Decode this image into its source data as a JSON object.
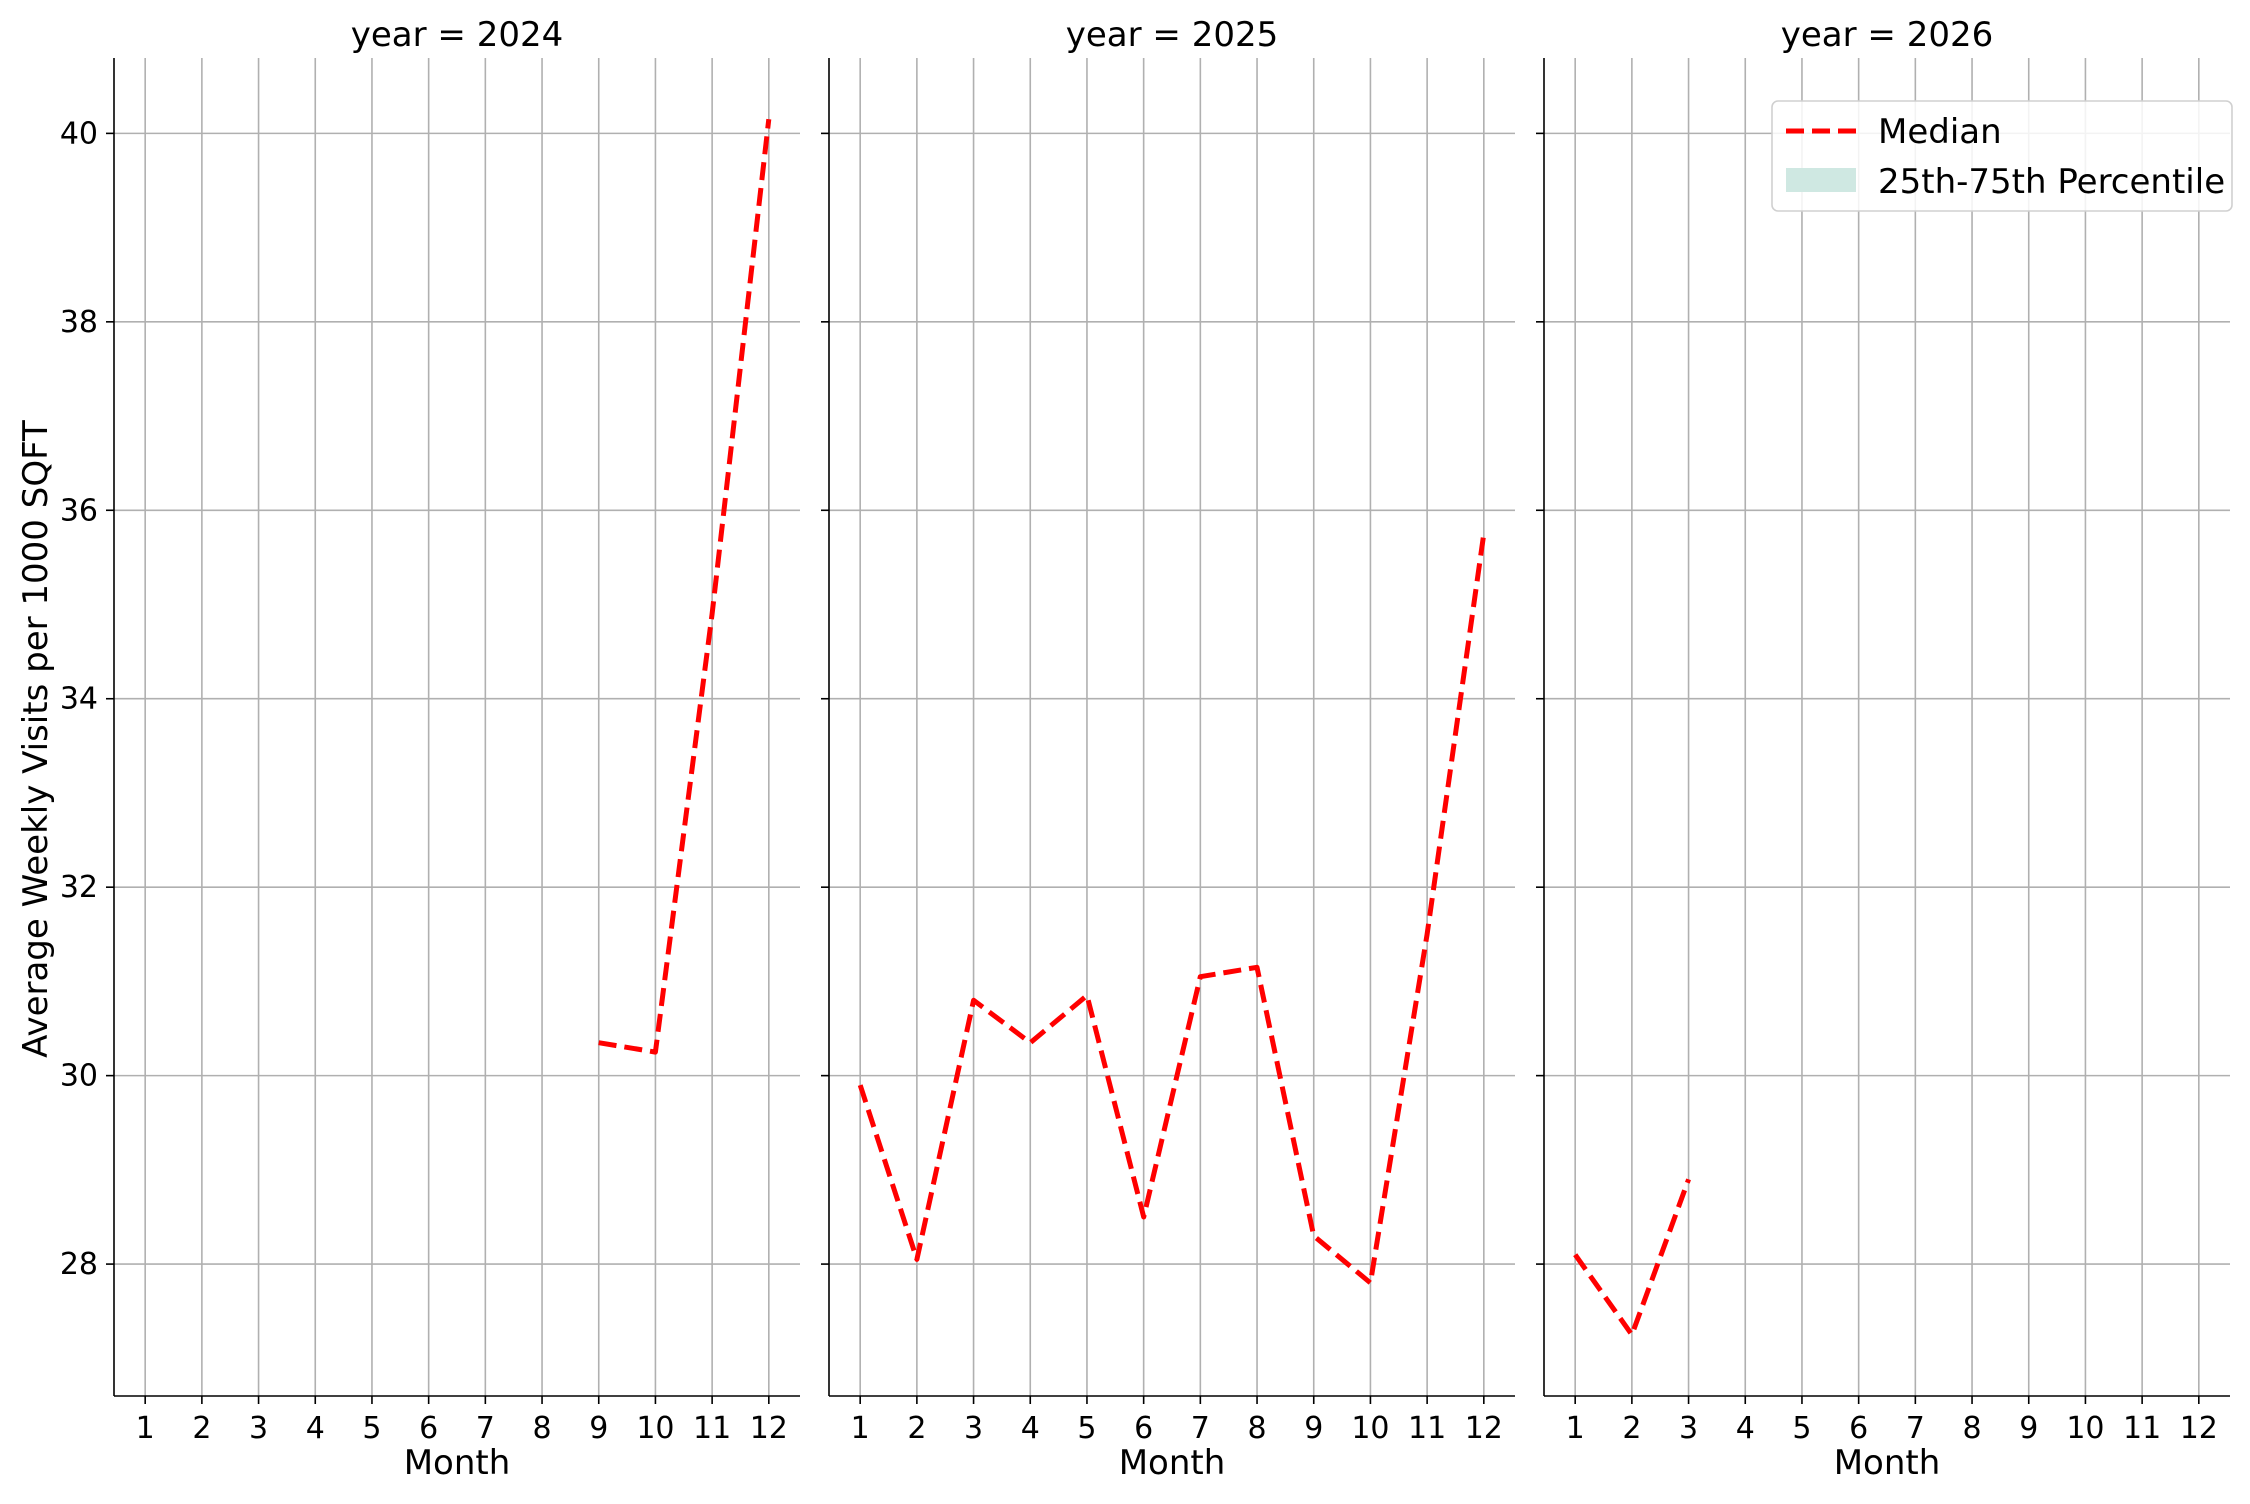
{
  "chart_data": {
    "type": "line",
    "ylabel": "Average Weekly Visits per 1000 SQFT",
    "xlabel": "Month",
    "xticks": [
      1,
      2,
      3,
      4,
      5,
      6,
      7,
      8,
      9,
      10,
      11,
      12
    ],
    "yticks": [
      28,
      30,
      32,
      34,
      36,
      38,
      40
    ],
    "ylim": [
      26.6,
      40.8
    ],
    "xlim": [
      0.45,
      12.55
    ],
    "grid": true,
    "shared_y": true,
    "legend": {
      "placement": "top-right of last panel",
      "entries": [
        {
          "label": "Median",
          "style": "dashed-line",
          "color": "#ff0000"
        },
        {
          "label": "25th-75th Percentile",
          "style": "band",
          "color": "#cfe8e2"
        }
      ]
    },
    "panels": [
      {
        "title": "year = 2024",
        "series": [
          {
            "name": "Median",
            "x": [
              9,
              10,
              11,
              12
            ],
            "y": [
              30.35,
              30.25,
              34.9,
              40.15
            ]
          }
        ]
      },
      {
        "title": "year = 2025",
        "series": [
          {
            "name": "Median",
            "x": [
              1,
              2,
              3,
              4,
              5,
              6,
              7,
              8,
              9,
              10,
              11,
              12
            ],
            "y": [
              29.9,
              28.05,
              30.8,
              30.35,
              30.85,
              28.5,
              31.05,
              31.15,
              28.3,
              27.8,
              31.5,
              35.75
            ]
          }
        ]
      },
      {
        "title": "year = 2026",
        "series": [
          {
            "name": "Median",
            "x": [
              1,
              2,
              3
            ],
            "y": [
              28.1,
              27.25,
              28.9
            ]
          }
        ]
      }
    ]
  }
}
